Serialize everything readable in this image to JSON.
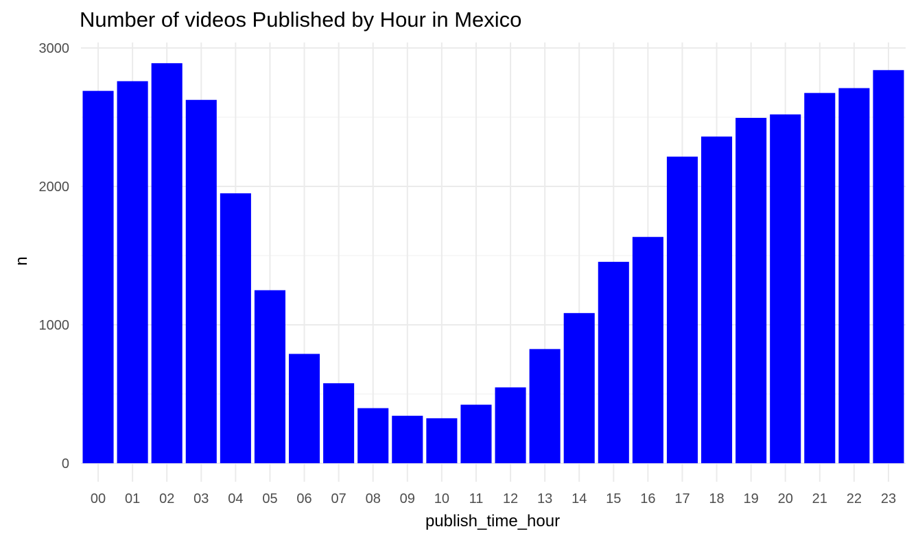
{
  "chart_data": {
    "type": "bar",
    "title": "Number of videos Published by Hour in Mexico",
    "xlabel": "publish_time_hour",
    "ylabel": "n",
    "categories": [
      "00",
      "01",
      "02",
      "03",
      "04",
      "05",
      "06",
      "07",
      "08",
      "09",
      "10",
      "11",
      "12",
      "13",
      "14",
      "15",
      "16",
      "17",
      "18",
      "19",
      "20",
      "21",
      "22",
      "23"
    ],
    "values": [
      2690,
      2760,
      2890,
      2625,
      1950,
      1250,
      790,
      578,
      398,
      343,
      325,
      423,
      548,
      825,
      1085,
      1455,
      1635,
      2215,
      2360,
      2495,
      2520,
      2675,
      2710,
      2840
    ],
    "ylim": [
      0,
      3000
    ],
    "yticks": [
      "0",
      "1000",
      "2000",
      "3000"
    ],
    "bar_color": "#0000ff",
    "grid": true,
    "legend": "none"
  }
}
